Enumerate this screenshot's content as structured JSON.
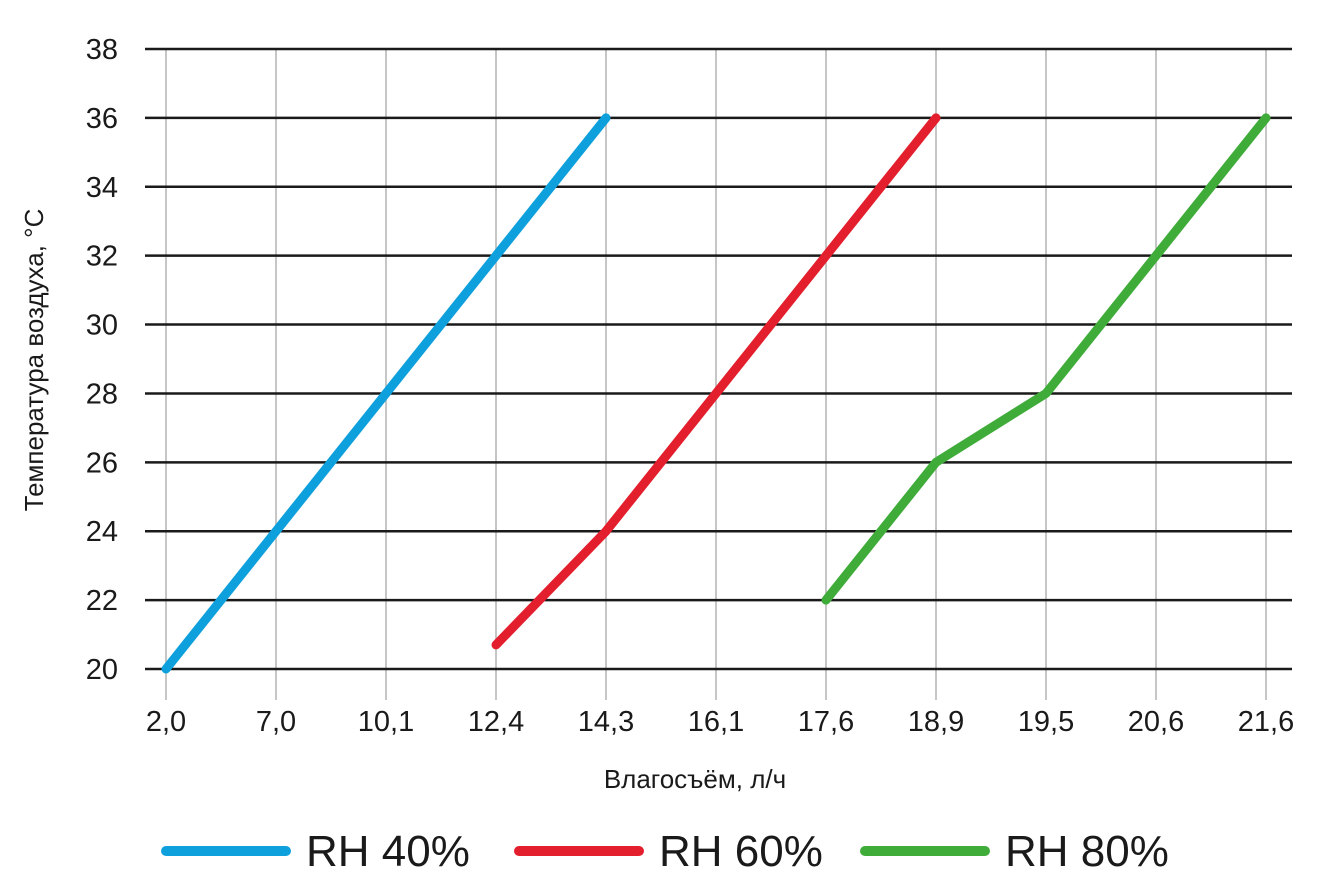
{
  "chart_data": {
    "type": "line",
    "title": "",
    "xlabel": "Влагосъём, л/ч",
    "ylabel": "Температура воздуха, °C",
    "categories": [
      "2,0",
      "7,0",
      "10,1",
      "12,4",
      "14,3",
      "16,1",
      "17,6",
      "18,9",
      "19,5",
      "20,6",
      "21,6"
    ],
    "y_ticks": [
      "20",
      "22",
      "24",
      "26",
      "28",
      "30",
      "32",
      "34",
      "36",
      "38"
    ],
    "ylim": [
      20,
      38
    ],
    "grid": true,
    "legend_position": "bottom",
    "series": [
      {
        "name": "RH 40%",
        "color": "#0ea0dc",
        "points": [
          {
            "x": "2,0",
            "y": 20
          },
          {
            "x": "7,0",
            "y": 24
          },
          {
            "x": "10,1",
            "y": 28
          },
          {
            "x": "12,4",
            "y": 32
          },
          {
            "x": "14,3",
            "y": 36
          }
        ]
      },
      {
        "name": "RH 60%",
        "color": "#e31e2d",
        "points": [
          {
            "x": "12,4",
            "y": 20.7
          },
          {
            "x": "14,3",
            "y": 24
          },
          {
            "x": "16,1",
            "y": 28
          },
          {
            "x": "17,6",
            "y": 32
          },
          {
            "x": "18,9",
            "y": 36
          }
        ]
      },
      {
        "name": "RH 80%",
        "color": "#3fac3a",
        "points": [
          {
            "x": "17,6",
            "y": 22
          },
          {
            "x": "18,9",
            "y": 26
          },
          {
            "x": "19,5",
            "y": 28
          },
          {
            "x": "20,6",
            "y": 32
          },
          {
            "x": "21,6",
            "y": 36
          }
        ]
      }
    ]
  }
}
